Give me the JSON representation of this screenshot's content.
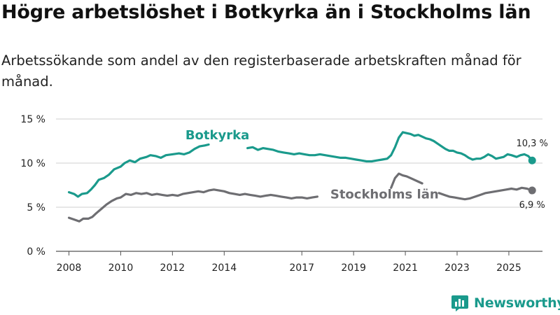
{
  "title": "Högre arbetslöshet i Botkyrka än i Stockholms län",
  "subtitle": "Arbetssökande som andel av den registerbaserade arbetskraften månad för månad.",
  "brand": {
    "name": "Newsworthy",
    "color": "#1a9a8c",
    "icon": "bar-chart-logo-icon"
  },
  "chart_data": {
    "type": "line",
    "x_range": [
      2007.5,
      2026.3
    ],
    "ylim": [
      0,
      15
    ],
    "y_ticks": [
      {
        "value": 0,
        "label": "0 %"
      },
      {
        "value": 5,
        "label": "5 %"
      },
      {
        "value": 10,
        "label": "10 %"
      },
      {
        "value": 15,
        "label": "15 %"
      }
    ],
    "x_ticks": [
      {
        "value": 2008,
        "label": "2008"
      },
      {
        "value": 2010,
        "label": "2010"
      },
      {
        "value": 2012,
        "label": "2012"
      },
      {
        "value": 2014,
        "label": "2014"
      },
      {
        "value": 2017,
        "label": "2017"
      },
      {
        "value": 2019,
        "label": "2019"
      },
      {
        "value": 2021,
        "label": "2021"
      },
      {
        "value": 2023,
        "label": "2023"
      },
      {
        "value": 2025,
        "label": "2025"
      }
    ],
    "grid": true,
    "series": [
      {
        "name": "Botkyrka",
        "color": "#1a9a8c",
        "end_label": "10,3 %",
        "segments": [
          [
            [
              2008.0,
              6.7
            ],
            [
              2008.2,
              6.5
            ],
            [
              2008.35,
              6.2
            ],
            [
              2008.5,
              6.5
            ],
            [
              2008.7,
              6.6
            ],
            [
              2008.85,
              7.0
            ],
            [
              2009.0,
              7.5
            ],
            [
              2009.15,
              8.1
            ],
            [
              2009.35,
              8.3
            ],
            [
              2009.55,
              8.7
            ],
            [
              2009.75,
              9.3
            ],
            [
              2010.0,
              9.6
            ],
            [
              2010.15,
              10.0
            ],
            [
              2010.35,
              10.3
            ],
            [
              2010.55,
              10.1
            ],
            [
              2010.75,
              10.5
            ],
            [
              2011.0,
              10.7
            ],
            [
              2011.15,
              10.9
            ],
            [
              2011.35,
              10.8
            ],
            [
              2011.55,
              10.6
            ],
            [
              2011.75,
              10.9
            ],
            [
              2012.0,
              11.0
            ],
            [
              2012.25,
              11.1
            ],
            [
              2012.45,
              11.0
            ],
            [
              2012.65,
              11.2
            ],
            [
              2012.85,
              11.6
            ],
            [
              2013.05,
              11.9
            ],
            [
              2013.25,
              12.0
            ],
            [
              2013.4,
              12.1
            ]
          ],
          [
            [
              2014.9,
              11.7
            ],
            [
              2015.1,
              11.8
            ],
            [
              2015.3,
              11.5
            ],
            [
              2015.5,
              11.7
            ],
            [
              2015.7,
              11.6
            ],
            [
              2015.9,
              11.5
            ],
            [
              2016.1,
              11.3
            ],
            [
              2016.3,
              11.2
            ],
            [
              2016.5,
              11.1
            ],
            [
              2016.7,
              11.0
            ],
            [
              2016.9,
              11.1
            ],
            [
              2017.1,
              11.0
            ],
            [
              2017.3,
              10.9
            ],
            [
              2017.5,
              10.9
            ],
            [
              2017.7,
              11.0
            ],
            [
              2017.9,
              10.9
            ],
            [
              2018.1,
              10.8
            ],
            [
              2018.3,
              10.7
            ],
            [
              2018.5,
              10.6
            ],
            [
              2018.7,
              10.6
            ],
            [
              2018.9,
              10.5
            ],
            [
              2019.1,
              10.4
            ],
            [
              2019.3,
              10.3
            ],
            [
              2019.5,
              10.2
            ],
            [
              2019.7,
              10.2
            ],
            [
              2019.9,
              10.3
            ],
            [
              2020.1,
              10.4
            ],
            [
              2020.3,
              10.5
            ],
            [
              2020.45,
              10.9
            ],
            [
              2020.6,
              11.8
            ],
            [
              2020.75,
              12.9
            ],
            [
              2020.9,
              13.5
            ],
            [
              2021.05,
              13.4
            ],
            [
              2021.2,
              13.3
            ],
            [
              2021.35,
              13.1
            ],
            [
              2021.5,
              13.2
            ],
            [
              2021.65,
              13.0
            ],
            [
              2021.8,
              12.8
            ],
            [
              2021.95,
              12.7
            ],
            [
              2022.1,
              12.5
            ],
            [
              2022.25,
              12.2
            ],
            [
              2022.4,
              11.9
            ],
            [
              2022.55,
              11.6
            ],
            [
              2022.7,
              11.4
            ],
            [
              2022.85,
              11.4
            ],
            [
              2023.0,
              11.2
            ],
            [
              2023.15,
              11.1
            ],
            [
              2023.3,
              10.9
            ],
            [
              2023.45,
              10.6
            ],
            [
              2023.6,
              10.4
            ],
            [
              2023.75,
              10.5
            ],
            [
              2023.9,
              10.5
            ],
            [
              2024.05,
              10.7
            ],
            [
              2024.2,
              11.0
            ],
            [
              2024.35,
              10.8
            ],
            [
              2024.5,
              10.5
            ],
            [
              2024.65,
              10.6
            ],
            [
              2024.8,
              10.7
            ],
            [
              2024.95,
              11.0
            ],
            [
              2025.1,
              10.9
            ],
            [
              2025.3,
              10.7
            ],
            [
              2025.45,
              10.9
            ],
            [
              2025.6,
              11.0
            ],
            [
              2025.75,
              10.8
            ],
            [
              2025.9,
              10.3
            ]
          ]
        ]
      },
      {
        "name": "Stockholms län",
        "color": "#6e6e72",
        "end_label": "6,9 %",
        "segments": [
          [
            [
              2008.0,
              3.8
            ],
            [
              2008.2,
              3.6
            ],
            [
              2008.4,
              3.4
            ],
            [
              2008.55,
              3.7
            ],
            [
              2008.75,
              3.7
            ],
            [
              2008.9,
              3.9
            ],
            [
              2009.05,
              4.3
            ],
            [
              2009.25,
              4.8
            ],
            [
              2009.45,
              5.3
            ],
            [
              2009.65,
              5.7
            ],
            [
              2009.85,
              6.0
            ],
            [
              2010.0,
              6.1
            ],
            [
              2010.2,
              6.5
            ],
            [
              2010.4,
              6.4
            ],
            [
              2010.6,
              6.6
            ],
            [
              2010.8,
              6.5
            ],
            [
              2011.0,
              6.6
            ],
            [
              2011.2,
              6.4
            ],
            [
              2011.4,
              6.5
            ],
            [
              2011.6,
              6.4
            ],
            [
              2011.8,
              6.3
            ],
            [
              2012.0,
              6.4
            ],
            [
              2012.2,
              6.3
            ],
            [
              2012.4,
              6.5
            ],
            [
              2012.6,
              6.6
            ],
            [
              2012.8,
              6.7
            ],
            [
              2013.0,
              6.8
            ],
            [
              2013.2,
              6.7
            ],
            [
              2013.4,
              6.9
            ],
            [
              2013.6,
              7.0
            ],
            [
              2013.8,
              6.9
            ],
            [
              2014.0,
              6.8
            ],
            [
              2014.2,
              6.6
            ],
            [
              2014.4,
              6.5
            ],
            [
              2014.6,
              6.4
            ],
            [
              2014.8,
              6.5
            ],
            [
              2015.0,
              6.4
            ],
            [
              2015.2,
              6.3
            ],
            [
              2015.4,
              6.2
            ],
            [
              2015.6,
              6.3
            ],
            [
              2015.8,
              6.4
            ],
            [
              2016.0,
              6.3
            ],
            [
              2016.2,
              6.2
            ],
            [
              2016.4,
              6.1
            ],
            [
              2016.6,
              6.0
            ],
            [
              2016.8,
              6.1
            ],
            [
              2017.0,
              6.1
            ],
            [
              2017.2,
              6.0
            ],
            [
              2017.4,
              6.1
            ],
            [
              2017.6,
              6.2
            ]
          ],
          [
            [
              2020.45,
              7.2
            ],
            [
              2020.6,
              8.3
            ],
            [
              2020.75,
              8.8
            ],
            [
              2020.9,
              8.6
            ],
            [
              2021.05,
              8.5
            ],
            [
              2021.2,
              8.3
            ],
            [
              2021.35,
              8.1
            ],
            [
              2021.5,
              7.9
            ],
            [
              2021.65,
              7.7
            ]
          ],
          [
            [
              2022.3,
              6.6
            ],
            [
              2022.5,
              6.4
            ],
            [
              2022.7,
              6.2
            ],
            [
              2022.9,
              6.1
            ],
            [
              2023.1,
              6.0
            ],
            [
              2023.3,
              5.9
            ],
            [
              2023.5,
              6.0
            ],
            [
              2023.7,
              6.2
            ],
            [
              2023.9,
              6.4
            ],
            [
              2024.1,
              6.6
            ],
            [
              2024.3,
              6.7
            ],
            [
              2024.5,
              6.8
            ],
            [
              2024.7,
              6.9
            ],
            [
              2024.9,
              7.0
            ],
            [
              2025.1,
              7.1
            ],
            [
              2025.3,
              7.0
            ],
            [
              2025.5,
              7.2
            ],
            [
              2025.7,
              7.1
            ],
            [
              2025.9,
              6.9
            ]
          ]
        ]
      }
    ]
  }
}
